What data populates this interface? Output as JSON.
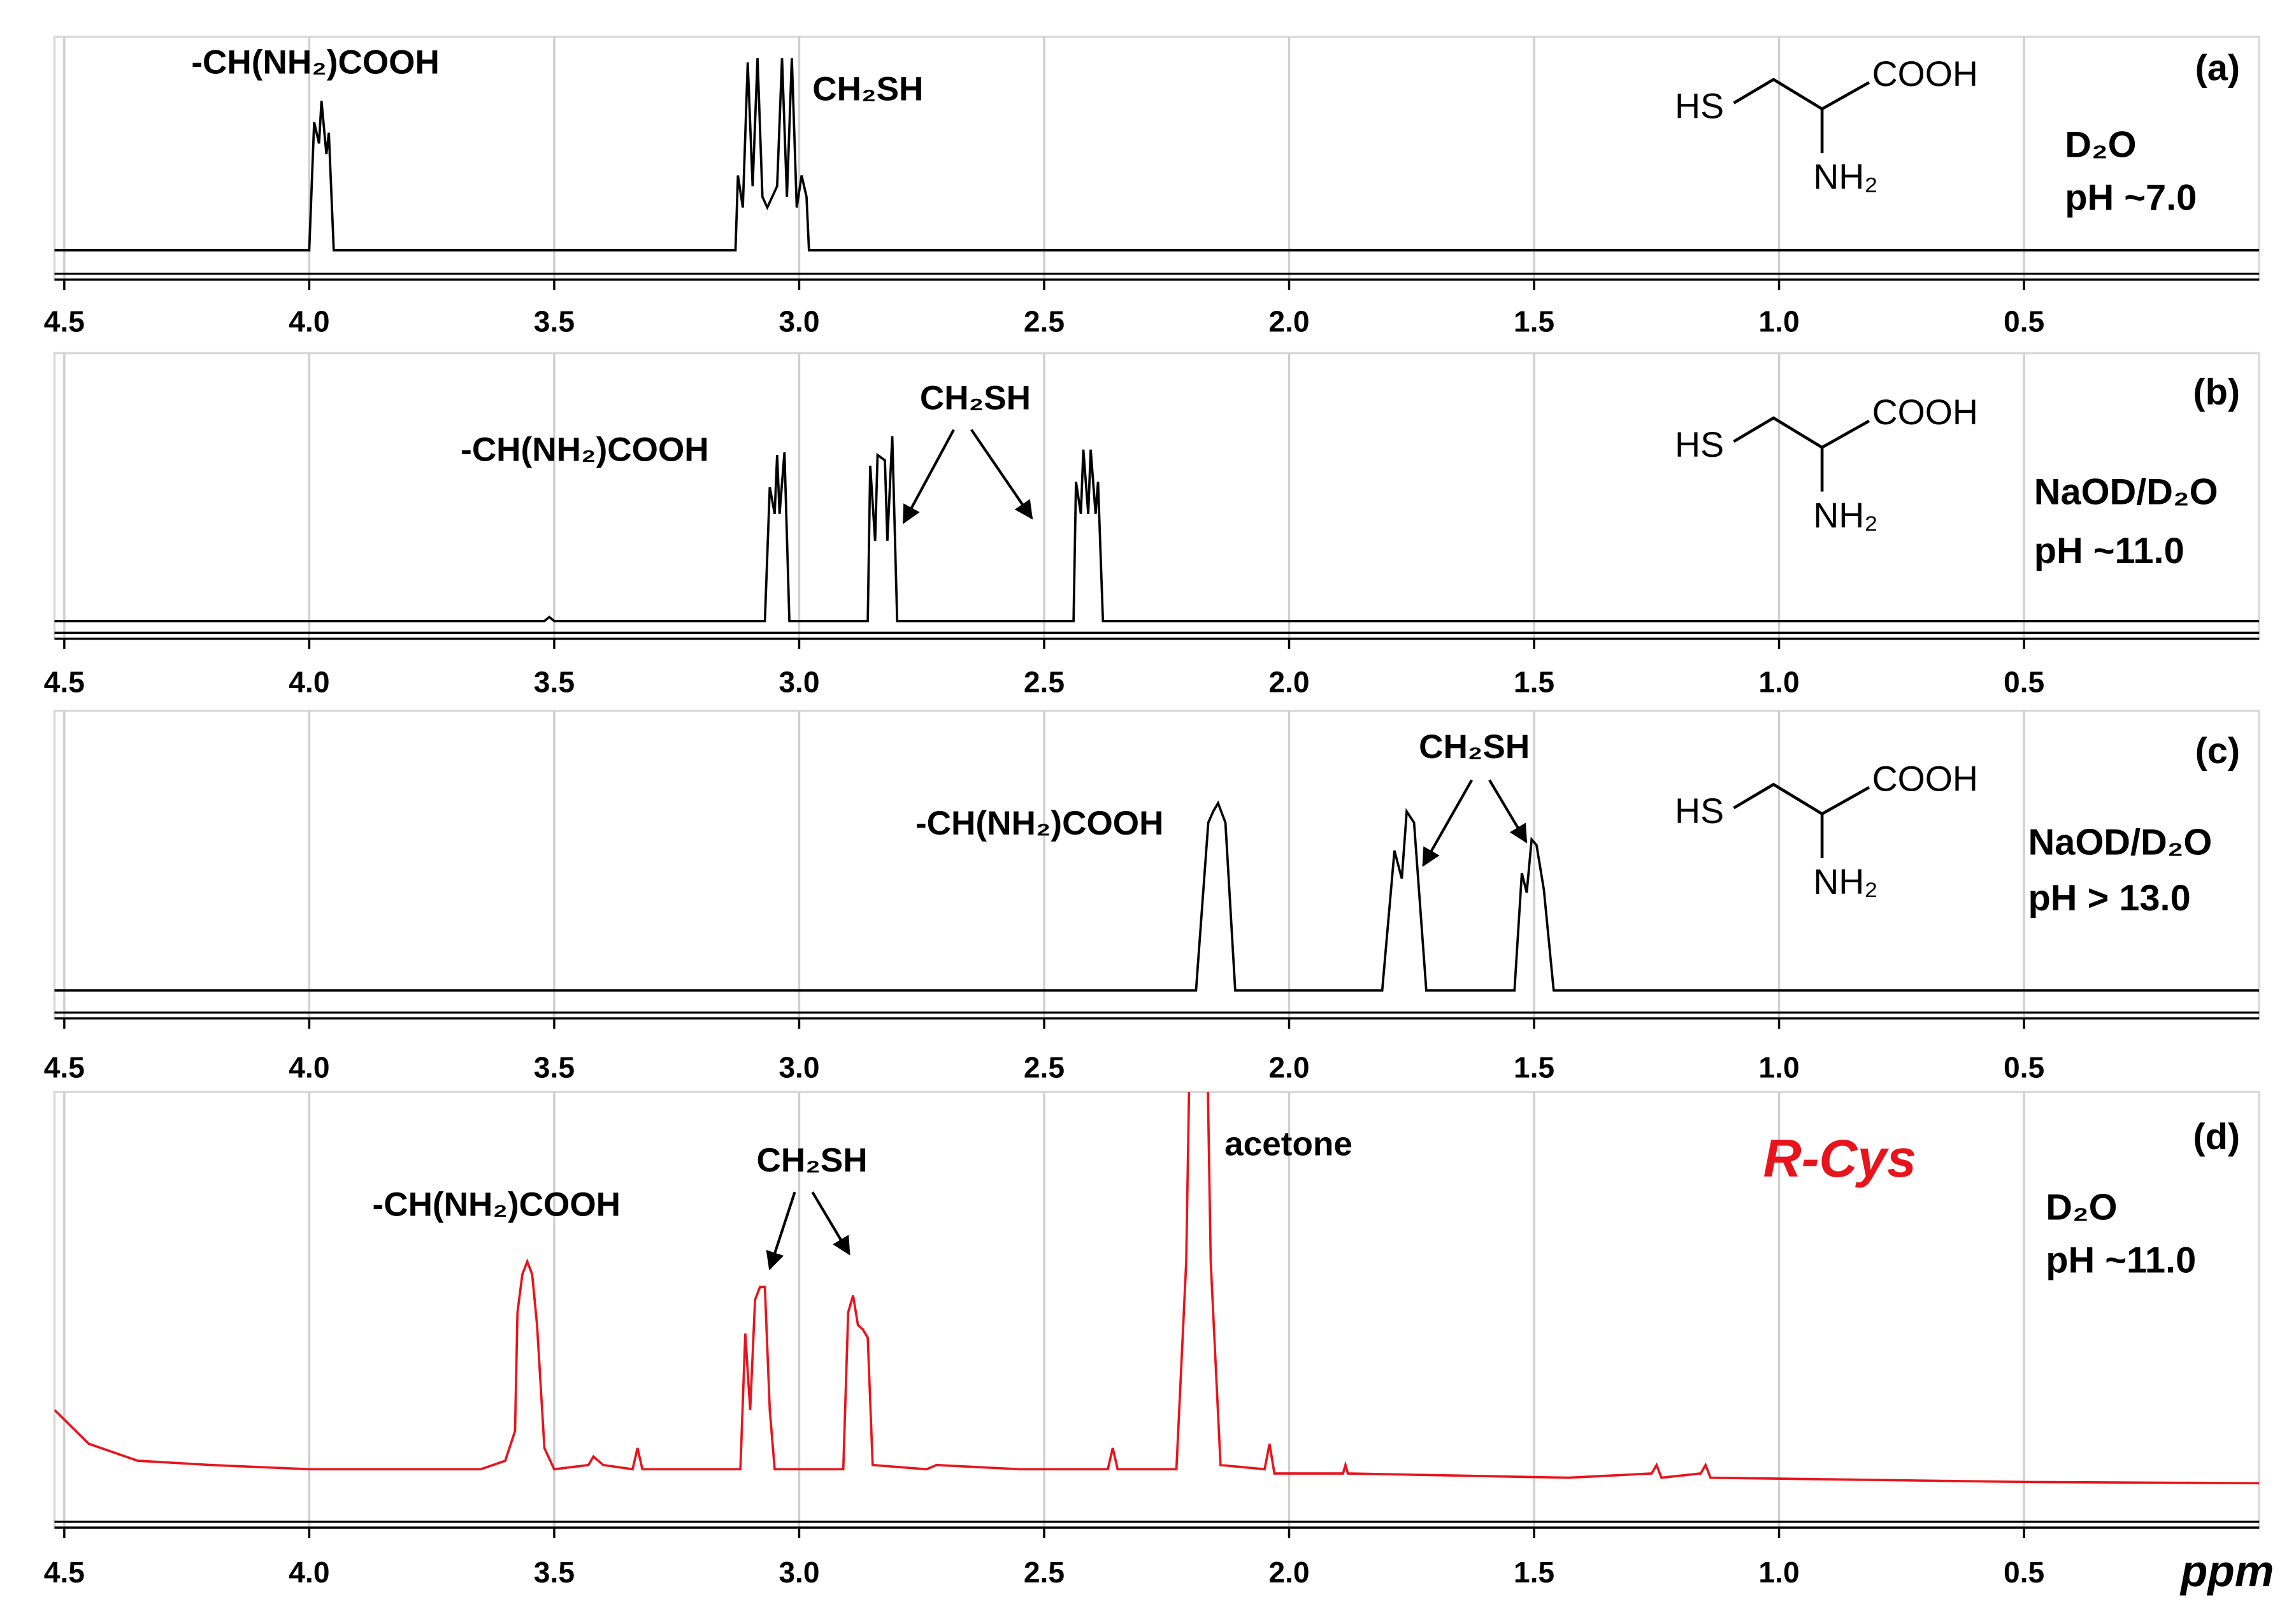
{
  "chart_data": [
    {
      "type": "line",
      "label": "(a)",
      "solvent": "D₂O",
      "condition": "pH ~7.0",
      "annotations": [
        "-CH(NH₂)COOH",
        "CH₂SH"
      ],
      "structure": [
        "HS",
        "COOH",
        "NH₂"
      ],
      "color": "#000000",
      "xlim": [
        4.52,
        0.02
      ],
      "ylim": [
        0,
        100
      ],
      "grid": true,
      "xticks": [
        4.5,
        {
          "value": 4,
          "label": "4.0"
        },
        3.5,
        {
          "value": 3,
          "label": "3.0"
        },
        2.5,
        {
          "value": 2,
          "label": "2.0"
        },
        1.5,
        {
          "value": 1,
          "label": "1.0"
        },
        0.5
      ],
      "x": [
        4.52,
        4.0,
        3.99,
        3.98,
        3.975,
        3.965,
        3.96,
        3.95,
        3.13,
        3.125,
        3.115,
        3.105,
        3.095,
        3.085,
        3.075,
        3.065,
        3.045,
        3.035,
        3.025,
        3.015,
        3.005,
        2.995,
        2.985,
        2.98,
        0.02
      ],
      "values": [
        0,
        0,
        60,
        50,
        70,
        45,
        55,
        0,
        0,
        35,
        20,
        88,
        30,
        90,
        25,
        20,
        30,
        90,
        25,
        90,
        20,
        35,
        25,
        0,
        0
      ]
    },
    {
      "type": "line",
      "label": "(b)",
      "solvent": "NaOD/D₂O",
      "condition": "pH ~11.0",
      "annotations": [
        "-CH(NH₂)COOH",
        "CH₂SH"
      ],
      "structure": [
        "HS",
        "COOH",
        "NH₂"
      ],
      "color": "#000000",
      "xlim": [
        4.52,
        0.02
      ],
      "ylim": [
        0,
        100
      ],
      "grid": true,
      "xticks": [
        4.5,
        {
          "value": 4,
          "label": "4.0"
        },
        3.5,
        {
          "value": 3,
          "label": "3.0"
        },
        2.5,
        {
          "value": 2,
          "label": "2.0"
        },
        1.5,
        {
          "value": 1,
          "label": "1.0"
        },
        0.5
      ],
      "x": [
        4.52,
        3.52,
        3.51,
        3.5,
        3.07,
        3.06,
        3.05,
        3.045,
        3.04,
        3.03,
        3.02,
        2.86,
        2.855,
        2.845,
        2.84,
        2.825,
        2.82,
        2.81,
        2.8,
        2.44,
        2.435,
        2.425,
        2.42,
        2.41,
        2.405,
        2.395,
        2.39,
        2.38,
        0.02
      ],
      "values": [
        0,
        0,
        1.5,
        0,
        0,
        50,
        40,
        62,
        40,
        63,
        0,
        0,
        58,
        30,
        62,
        60,
        30,
        69,
        0,
        0,
        52,
        40,
        64,
        40,
        64,
        40,
        52,
        0,
        0
      ]
    },
    {
      "type": "line",
      "label": "(c)",
      "solvent": "NaOD/D₂O",
      "condition": "pH > 13.0",
      "annotations": [
        "-CH(NH₂)COOH",
        "CH₂SH"
      ],
      "structure": [
        "HS",
        "COOH",
        "NH₂"
      ],
      "color": "#000000",
      "xlim": [
        4.52,
        0.02
      ],
      "ylim": [
        0,
        100
      ],
      "grid": true,
      "xticks": [
        4.5,
        {
          "value": 4,
          "label": "4.0"
        },
        3.5,
        {
          "value": 3,
          "label": "3.0"
        },
        2.5,
        {
          "value": 2,
          "label": "2.0"
        },
        1.5,
        {
          "value": 1,
          "label": "1.0"
        },
        0.5
      ],
      "x": [
        4.52,
        2.19,
        2.165,
        2.155,
        2.145,
        2.13,
        2.11,
        1.81,
        1.785,
        1.77,
        1.76,
        1.745,
        1.72,
        1.54,
        1.525,
        1.515,
        1.505,
        1.495,
        1.48,
        1.46,
        0.02
      ],
      "values": [
        0,
        0,
        60,
        64,
        67,
        60,
        0,
        0,
        50,
        40,
        64,
        60,
        0,
        0,
        42,
        35,
        54,
        52,
        36,
        0,
        0
      ]
    },
    {
      "type": "line",
      "label": "(d)",
      "solvent": "D₂O",
      "condition": "pH ~11.0",
      "annotations": [
        "-CH(NH₂)COOH",
        "CH₂SH",
        "acetone",
        "R-Cys"
      ],
      "xlabel": "ppm",
      "color": "#e8141c",
      "xlim": [
        4.52,
        0.02
      ],
      "ylim": [
        0,
        100
      ],
      "grid": true,
      "xticks": [
        4.5,
        {
          "value": 4,
          "label": "4.0"
        },
        3.5,
        {
          "value": 3,
          "label": "3.0"
        },
        2.5,
        {
          "value": 2,
          "label": "2.0"
        },
        1.5,
        {
          "value": 1,
          "label": "1.0"
        },
        0.5
      ],
      "x": [
        4.52,
        4.45,
        4.35,
        4.2,
        4.0,
        3.65,
        3.6,
        3.58,
        3.575,
        3.565,
        3.555,
        3.545,
        3.535,
        3.52,
        3.5,
        3.43,
        3.42,
        3.4,
        3.34,
        3.33,
        3.32,
        3.12,
        3.11,
        3.1,
        3.09,
        3.08,
        3.07,
        3.06,
        3.05,
        2.91,
        2.9,
        2.89,
        2.88,
        2.87,
        2.86,
        2.85,
        2.74,
        2.72,
        2.55,
        2.37,
        2.36,
        2.35,
        2.23,
        2.21,
        2.2,
        2.17,
        2.16,
        2.14,
        2.05,
        2.04,
        2.03,
        1.89,
        1.885,
        1.88,
        1.43,
        1.26,
        1.25,
        1.24,
        1.16,
        1.15,
        1.14,
        0.5,
        0.02
      ],
      "values": [
        25,
        17,
        13,
        12,
        11,
        11,
        13,
        20,
        48,
        57,
        60,
        57,
        45,
        16,
        11,
        12,
        14,
        12,
        11,
        16,
        11,
        11,
        43,
        25,
        51,
        54,
        54,
        25,
        11,
        11,
        48,
        52,
        45,
        44,
        42,
        12,
        11,
        12,
        11,
        11,
        16,
        11,
        11,
        60,
        130,
        130,
        60,
        12,
        11,
        17,
        10,
        10,
        12,
        10,
        9,
        10,
        12,
        9,
        10,
        12,
        9,
        8,
        7.7
      ]
    }
  ]
}
